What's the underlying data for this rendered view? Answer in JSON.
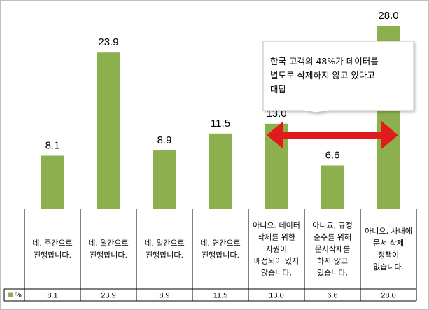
{
  "chart_data": {
    "type": "bar",
    "categories": [
      "네, 주간으로 진행합니다.",
      "네, 월간으로 진행합니다.",
      "네. 일간으로 진행합니다.",
      "네. 연간으로 진행합니다.",
      "아니요. 데이터 삭제를 위한 자원이 배정되어 있지 않습니다.",
      "아니요, 규정 준수를 위해 문서삭제를 하지 않고 있습니다.",
      "아니요, 사내에 문서 삭제 정책이 없습니다."
    ],
    "category_lines": [
      [
        "네, 주간으로",
        "진행합니다."
      ],
      [
        "네, 월간으로",
        "진행합니다."
      ],
      [
        "네. 일간으로",
        "진행합니다."
      ],
      [
        "네. 연간으로",
        "진행합니다."
      ],
      [
        "아니요. 데이터",
        "삭제를 위한",
        "자원이",
        "배정되어 있지",
        "않습니다."
      ],
      [
        "아니요, 규정",
        "준수를 위해",
        "문서삭제를",
        "하지 않고",
        "있습니다."
      ],
      [
        "아니요, 사내에",
        "문서 삭제",
        "정책이",
        "없습니다."
      ]
    ],
    "series": [
      {
        "name": "%",
        "values": [
          8.1,
          23.9,
          8.9,
          11.5,
          13.0,
          6.6,
          28.0
        ]
      }
    ],
    "value_labels": [
      "8.1",
      "23.9",
      "8.9",
      "11.5",
      "13.0",
      "6.6",
      "28.0"
    ],
    "ylim": [
      0,
      28.0
    ],
    "grid": false,
    "legend": "data-table",
    "bar_color": "#8db04e",
    "arrow_color": "#e01b1b",
    "annotation": {
      "lines": [
        "한국 고객의 48%가 데이터를",
        "별도로 삭제하지 않고 있다고",
        "대답"
      ],
      "from_category": 4,
      "to_category": 6
    }
  }
}
